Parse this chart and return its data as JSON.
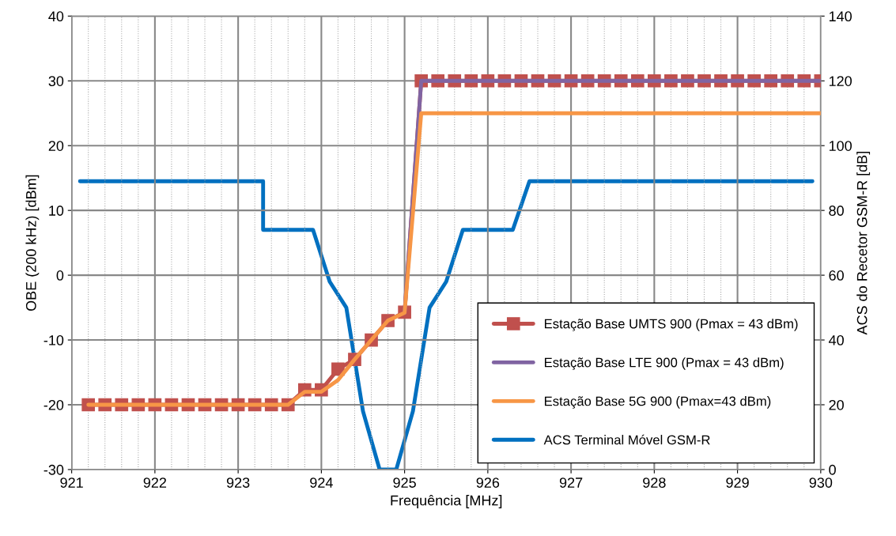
{
  "chart_data": {
    "type": "line",
    "xlabel": "Frequência [MHz]",
    "ylabel": "OBE (200 kHz) [dBm]",
    "y2label": "ACS do Recetor GSM-R [dB]",
    "xlim": [
      921,
      930
    ],
    "ylim": [
      -30,
      40
    ],
    "y2lim": [
      0,
      140
    ],
    "xticks": [
      921,
      {
        "value": 921.2,
        "label": null
      },
      {
        "value": 921.4,
        "label": null
      },
      {
        "value": 921.6,
        "label": null
      },
      {
        "value": 921.8,
        "label": null
      },
      922,
      {
        "value": 922.2,
        "label": null
      },
      {
        "value": 922.4,
        "label": null
      },
      {
        "value": 922.6,
        "label": null
      },
      {
        "value": 922.8,
        "label": null
      },
      923,
      {
        "value": 923.2,
        "label": null
      },
      {
        "value": 923.4,
        "label": null
      },
      {
        "value": 923.6,
        "label": null
      },
      {
        "value": 923.8,
        "label": null
      },
      924,
      {
        "value": 924.2,
        "label": null
      },
      {
        "value": 924.4,
        "label": null
      },
      {
        "value": 924.6,
        "label": null
      },
      {
        "value": 924.8,
        "label": null
      },
      925,
      {
        "value": 925.2,
        "label": null
      },
      {
        "value": 925.4,
        "label": null
      },
      {
        "value": 925.6,
        "label": null
      },
      {
        "value": 925.8,
        "label": null
      },
      926,
      {
        "value": 926.2,
        "label": null
      },
      {
        "value": 926.4,
        "label": null
      },
      {
        "value": 926.6,
        "label": null
      },
      {
        "value": 926.8,
        "label": null
      },
      927,
      {
        "value": 927.2,
        "label": null
      },
      {
        "value": 927.4,
        "label": null
      },
      {
        "value": 927.6,
        "label": null
      },
      {
        "value": 927.8,
        "label": null
      },
      928,
      {
        "value": 928.2,
        "label": null
      },
      {
        "value": 928.4,
        "label": null
      },
      {
        "value": 928.6,
        "label": null
      },
      {
        "value": 928.8,
        "label": null
      },
      929,
      {
        "value": 929.2,
        "label": null
      },
      {
        "value": 929.4,
        "label": null
      },
      {
        "value": 929.6,
        "label": null
      },
      {
        "value": 929.8,
        "label": null
      },
      930
    ],
    "yticks": [
      -30,
      -20,
      -10,
      0,
      10,
      20,
      30,
      40
    ],
    "y2ticks": [
      0,
      20,
      40,
      60,
      80,
      100,
      120,
      140
    ],
    "grid": true,
    "legend": "bottom right",
    "series": [
      {
        "name": "Estação Base UMTS 900 (Pmax = 43 dBm)",
        "color": "#c0504d",
        "marker": "square",
        "x": [
          921.2,
          921.4,
          921.6,
          921.8,
          922.0,
          922.2,
          922.4,
          922.6,
          922.8,
          923.0,
          923.2,
          923.4,
          923.6,
          923.8,
          924.0,
          924.2,
          924.4,
          924.6,
          924.8,
          925.0,
          925.2,
          925.4,
          925.6,
          925.8,
          926.0,
          926.2,
          926.4,
          926.6,
          926.8,
          927.0,
          927.2,
          927.4,
          927.6,
          927.8,
          928.0,
          928.2,
          928.4,
          928.6,
          928.8,
          929.0,
          929.2,
          929.4,
          929.6,
          929.8,
          930.0
        ],
        "values": [
          -20,
          -20,
          -20,
          -20,
          -20,
          -20,
          -20,
          -20,
          -20,
          -20,
          -20,
          -20,
          -20,
          -17.7,
          -17.7,
          -14.5,
          -13,
          -10,
          -7,
          -5.7,
          30,
          30,
          30,
          30,
          30,
          30,
          30,
          30,
          30,
          30,
          30,
          30,
          30,
          30,
          30,
          30,
          30,
          30,
          30,
          30,
          30,
          30,
          30,
          30,
          30
        ]
      },
      {
        "name": "Estação Base LTE 900 (Pmax = 43 dBm)",
        "color": "#8064a2",
        "marker": "none",
        "x": [
          925.0,
          925.2,
          925.4,
          925.6,
          925.8,
          926.0,
          926.2,
          926.4,
          926.6,
          926.8,
          927.0,
          927.2,
          927.4,
          927.6,
          927.8,
          928.0,
          928.2,
          928.4,
          928.6,
          928.8,
          929.0,
          929.2,
          929.4,
          929.6,
          929.8,
          930.0
        ],
        "values": [
          -5.8,
          30,
          30,
          30,
          30,
          30,
          30,
          30,
          30,
          30,
          30,
          30,
          30,
          30,
          30,
          30,
          30,
          30,
          30,
          30,
          30,
          30,
          30,
          30,
          30,
          30
        ]
      },
      {
        "name": "Estação Base 5G 900 (Pmax=43 dBm)",
        "color": "#f79646",
        "marker": "none",
        "x": [
          921.2,
          921.4,
          921.6,
          921.8,
          922.0,
          922.2,
          922.4,
          922.6,
          922.8,
          923.0,
          923.2,
          923.4,
          923.6,
          923.8,
          924.0,
          924.2,
          924.4,
          924.6,
          924.8,
          925.0,
          925.2,
          925.4,
          925.6,
          925.8,
          926.0,
          926.2,
          926.4,
          926.6,
          926.8,
          927.0,
          927.2,
          927.4,
          927.6,
          927.8,
          928.0,
          928.2,
          928.4,
          928.6,
          928.8,
          929.0,
          929.2,
          929.4,
          929.6,
          929.8,
          930.0
        ],
        "values": [
          -20,
          -20,
          -20,
          -20,
          -20,
          -20,
          -20,
          -20,
          -20,
          -20,
          -20,
          -20,
          -20,
          -18,
          -18,
          -16.2,
          -13,
          -10,
          -7,
          -5.8,
          25,
          25,
          25,
          25,
          25,
          25,
          25,
          25,
          25,
          25,
          25,
          25,
          25,
          25,
          25,
          25,
          25,
          25,
          25,
          25,
          25,
          25,
          25,
          25,
          25
        ]
      },
      {
        "name": "ACS Terminal Móvel GSM-R",
        "color": "#0070c0",
        "marker": "none",
        "axis": "y2",
        "x": [
          921.1,
          923.3,
          923.3,
          923.9,
          924.1,
          924.3,
          924.5,
          924.7,
          924.9,
          925.1,
          925.3,
          925.5,
          925.7,
          926.3,
          926.5,
          929.9
        ],
        "values": [
          89,
          89,
          74,
          74,
          58,
          50,
          18,
          0,
          0,
          18,
          50,
          58,
          74,
          74,
          89,
          89
        ]
      }
    ]
  }
}
